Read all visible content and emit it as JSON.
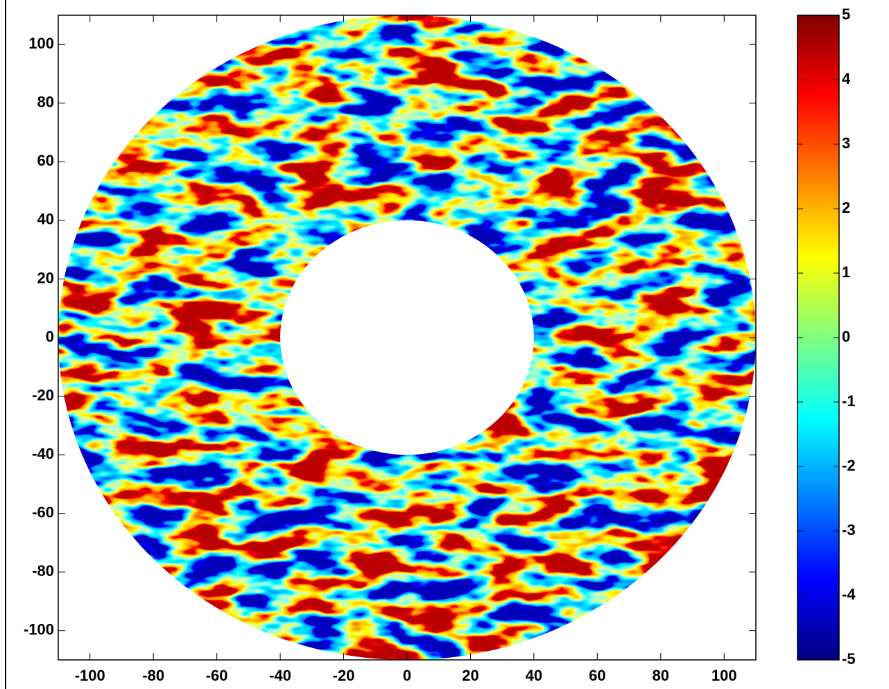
{
  "chart_data": {
    "type": "heatmap",
    "colormap": "jet",
    "xlim": [
      -110,
      110
    ],
    "ylim": [
      -110,
      110
    ],
    "xticks": [
      -100,
      -80,
      -60,
      -40,
      -20,
      0,
      20,
      40,
      60,
      80,
      100
    ],
    "yticks": [
      -100,
      -80,
      -60,
      -40,
      -20,
      0,
      20,
      40,
      60,
      80,
      100
    ],
    "inner_radius": 40,
    "outer_radius": 110,
    "colorbar": {
      "clim": [
        -5,
        5
      ],
      "ticks": [
        -5,
        -4,
        -3,
        -2,
        -1,
        0,
        1,
        2,
        3,
        4,
        5
      ]
    }
  }
}
